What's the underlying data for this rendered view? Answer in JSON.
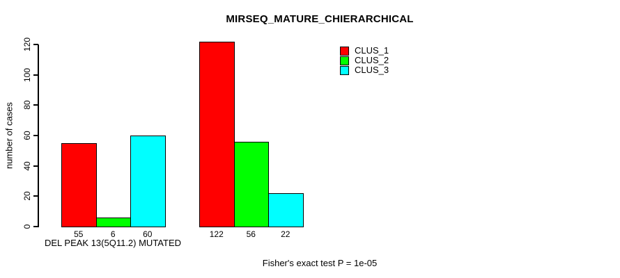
{
  "chart_data": {
    "type": "bar",
    "title": "MIRSEQ_MATURE_CHIERARCHICAL",
    "ylabel": "number of cases",
    "xlabel": "",
    "ylim": [
      0,
      120
    ],
    "yticks": [
      0,
      20,
      40,
      60,
      80,
      100,
      120
    ],
    "grid": false,
    "group_label": "DEL PEAK 13(5Q11.2) MUTATED",
    "series": [
      {
        "name": "CLUS_1",
        "color": "#FF0000",
        "values": [
          55,
          122
        ]
      },
      {
        "name": "CLUS_2",
        "color": "#00FF00",
        "values": [
          6,
          56
        ]
      },
      {
        "name": "CLUS_3",
        "color": "#00FFFF",
        "values": [
          60,
          22
        ]
      }
    ],
    "show_value_labels": true,
    "legend": {
      "position": "top-right"
    },
    "footnote": "Fisher's exact test P = 1e-05"
  }
}
